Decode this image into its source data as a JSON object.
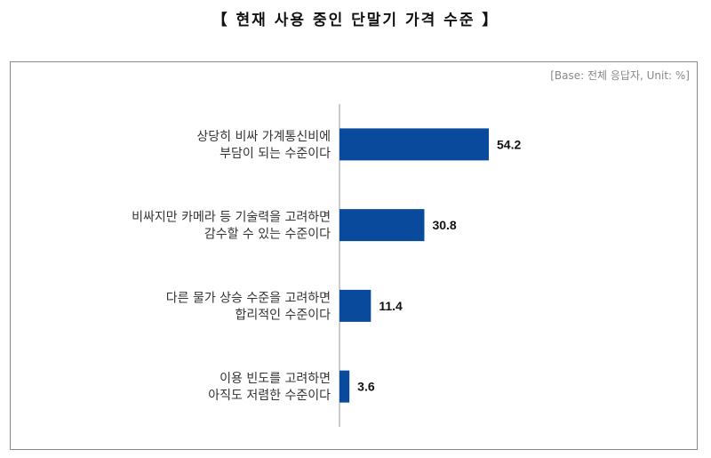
{
  "title": "【 현재 사용 중인 단말기 가격 수준 】",
  "base_note": "[Base: 전체 응답자, Unit: %]",
  "chart_data": {
    "type": "bar",
    "orientation": "horizontal",
    "categories": [
      [
        "상당히 비싸 가계통신비에",
        "부담이 되는 수준이다"
      ],
      [
        "비싸지만 카메라 등 기술력을 고려하면",
        "감수할 수 있는 수준이다"
      ],
      [
        "다른 물가 상승 수준을 고려하면",
        "합리적인 수준이다"
      ],
      [
        "이용 빈도를 고려하면",
        "아직도 저렴한 수준이다"
      ]
    ],
    "values": [
      54.2,
      30.8,
      11.4,
      3.6
    ],
    "value_labels": [
      "54.2",
      "30.8",
      "11.4",
      "3.6"
    ],
    "bar_color": "#0a4a9c",
    "unit": "%"
  }
}
